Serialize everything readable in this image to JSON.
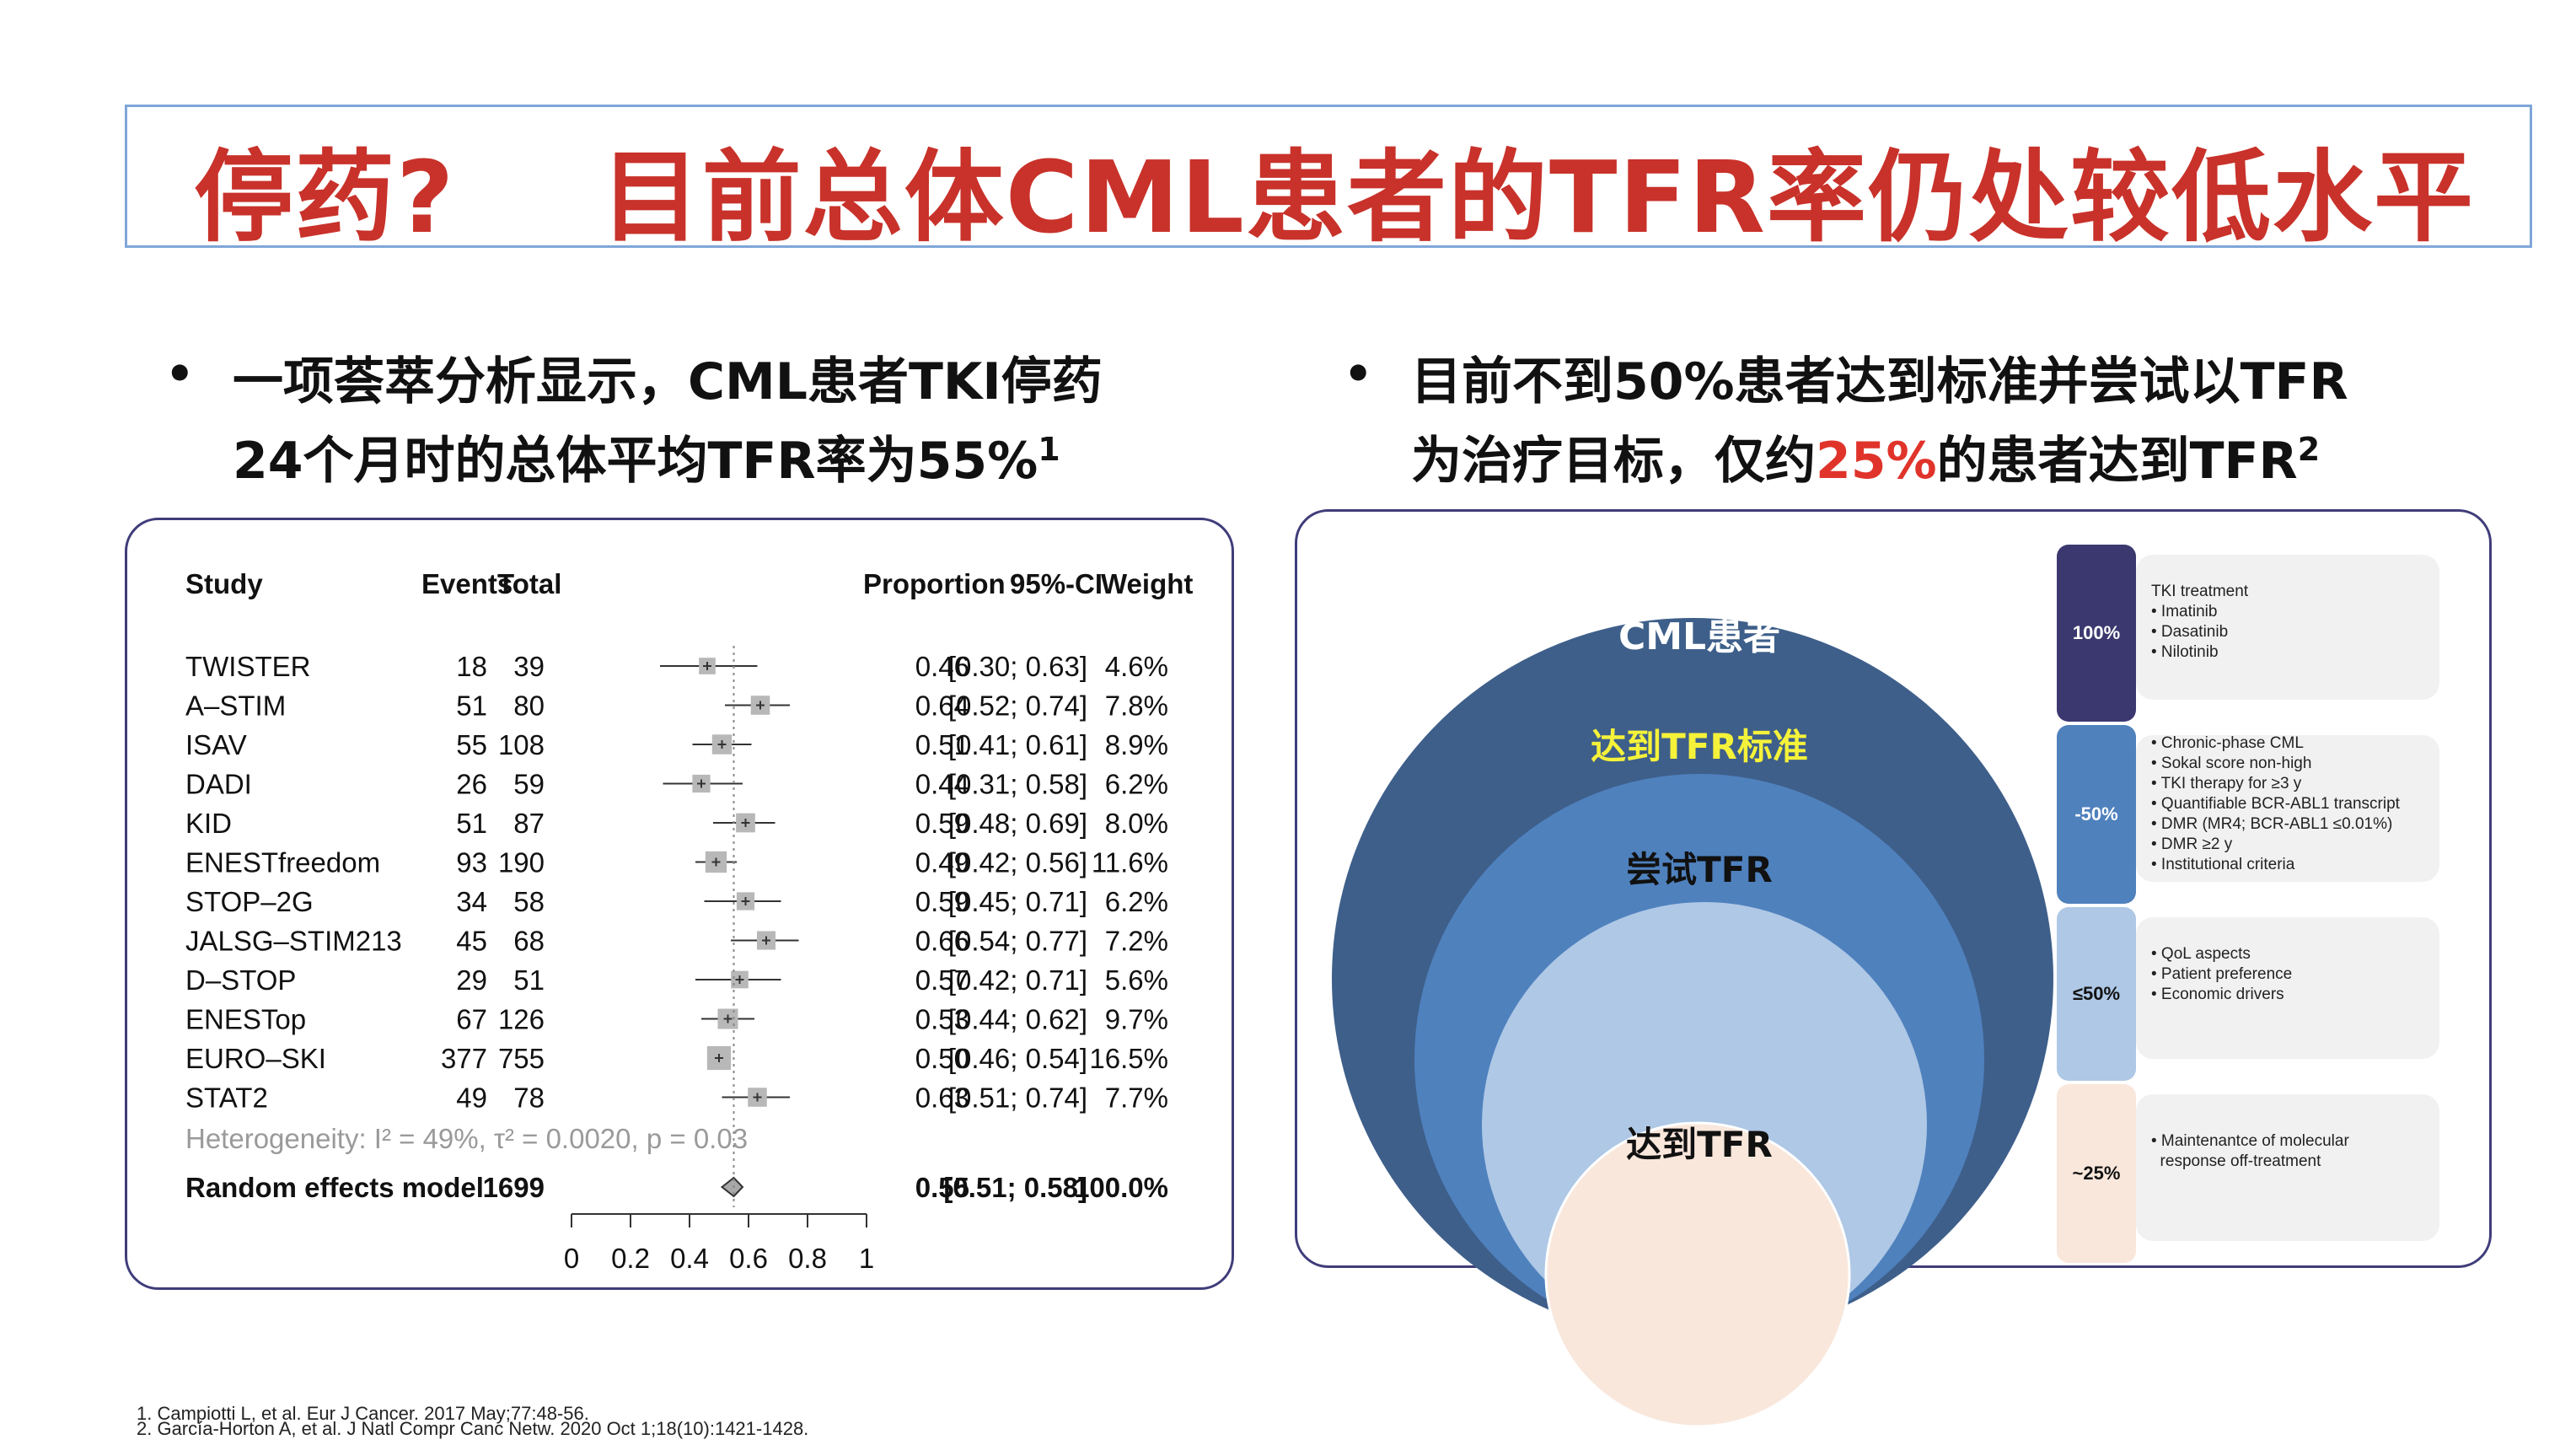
{
  "title": "停药?    目前总体CML患者的TFR率仍处较低水平",
  "left_bullet": {
    "line1": "一项荟萃分析显示，CML患者TKI停药",
    "line2": "24个月时的总体平均TFR率为55%",
    "sup": "1"
  },
  "right_bullet": {
    "line1": "目前不到50%患者达到标准并尝试以TFR",
    "line2_a": "为治疗目标，仅约",
    "line2_highlight": "25%",
    "line2_b": "的患者达到TFR",
    "sup": "2"
  },
  "forest_plot": {
    "headers": {
      "study": "Study",
      "events": "Events",
      "total": "Total",
      "proportion": "Proportion",
      "ci": "95%-CI",
      "weight": "Weight"
    },
    "rows": [
      {
        "study": "TWISTER",
        "events": "18",
        "total": "39",
        "proportion": "0.46",
        "ci": "[0.30; 0.63]",
        "weight": "4.6%",
        "p": 0.46,
        "lo": 0.3,
        "hi": 0.63,
        "w": 4.6
      },
      {
        "study": "A–STIM",
        "events": "51",
        "total": "80",
        "proportion": "0.64",
        "ci": "[0.52; 0.74]",
        "weight": "7.8%",
        "p": 0.64,
        "lo": 0.52,
        "hi": 0.74,
        "w": 7.8
      },
      {
        "study": "ISAV",
        "events": "55",
        "total": "108",
        "proportion": "0.51",
        "ci": "[0.41; 0.61]",
        "weight": "8.9%",
        "p": 0.51,
        "lo": 0.41,
        "hi": 0.61,
        "w": 8.9
      },
      {
        "study": "DADI",
        "events": "26",
        "total": "59",
        "proportion": "0.44",
        "ci": "[0.31; 0.58]",
        "weight": "6.2%",
        "p": 0.44,
        "lo": 0.31,
        "hi": 0.58,
        "w": 6.2
      },
      {
        "study": "KID",
        "events": "51",
        "total": "87",
        "proportion": "0.59",
        "ci": "[0.48; 0.69]",
        "weight": "8.0%",
        "p": 0.59,
        "lo": 0.48,
        "hi": 0.69,
        "w": 8.0
      },
      {
        "study": "ENESTfreedom",
        "events": "93",
        "total": "190",
        "proportion": "0.49",
        "ci": "[0.42; 0.56]",
        "weight": "11.6%",
        "p": 0.49,
        "lo": 0.42,
        "hi": 0.56,
        "w": 11.6
      },
      {
        "study": "STOP–2G",
        "events": "34",
        "total": "58",
        "proportion": "0.59",
        "ci": "[0.45; 0.71]",
        "weight": "6.2%",
        "p": 0.59,
        "lo": 0.45,
        "hi": 0.71,
        "w": 6.2
      },
      {
        "study": "JALSG–STIM213",
        "events": "45",
        "total": "68",
        "proportion": "0.66",
        "ci": "[0.54; 0.77]",
        "weight": "7.2%",
        "p": 0.66,
        "lo": 0.54,
        "hi": 0.77,
        "w": 7.2
      },
      {
        "study": "D–STOP",
        "events": "29",
        "total": "51",
        "proportion": "0.57",
        "ci": "[0.42; 0.71]",
        "weight": "5.6%",
        "p": 0.57,
        "lo": 0.42,
        "hi": 0.71,
        "w": 5.6
      },
      {
        "study": "ENESTop",
        "events": "67",
        "total": "126",
        "proportion": "0.53",
        "ci": "[0.44; 0.62]",
        "weight": "9.7%",
        "p": 0.53,
        "lo": 0.44,
        "hi": 0.62,
        "w": 9.7
      },
      {
        "study": "EURO–SKI",
        "events": "377",
        "total": "755",
        "proportion": "0.50",
        "ci": "[0.46; 0.54]",
        "weight": "16.5%",
        "p": 0.5,
        "lo": 0.46,
        "hi": 0.54,
        "w": 16.5
      },
      {
        "study": "STAT2",
        "events": "49",
        "total": "78",
        "proportion": "0.63",
        "ci": "[0.51; 0.74]",
        "weight": "7.7%",
        "p": 0.63,
        "lo": 0.51,
        "hi": 0.74,
        "w": 7.7
      }
    ],
    "heterogeneity": "Heterogeneity: I² = 49%, τ² = 0.0020, p = 0.03",
    "summary": {
      "label": "Random effects model",
      "total": "1699",
      "proportion": "0.55",
      "ci": "[0.51; 0.58]",
      "weight": "100.0%",
      "p": 0.55,
      "lo": 0.51,
      "hi": 0.58
    },
    "axis_ticks": [
      "0",
      "0.2",
      "0.4",
      "0.6",
      "0.8",
      "1"
    ]
  },
  "venn": {
    "outer": "CML患者",
    "second": "达到TFR标准",
    "third": "尝试TFR",
    "inner": "达到TFR",
    "colors": {
      "outer": "#3e5f8a",
      "second": "#4f81bd",
      "third": "#aec8e6",
      "inner": "#f9e7dc",
      "second_label": "#f5f23a"
    }
  },
  "cards": [
    {
      "pct": "100%",
      "color": "#3b3870",
      "lines": [
        "TKI treatment",
        "• Imatinib",
        "• Dasatinib",
        "• Nilotinib"
      ]
    },
    {
      "pct": "-50%",
      "color": "#4f81bd",
      "lines": [
        "• Chronic-phase CML",
        "• Sokal score non-high",
        "• TKI therapy for ≥3 y",
        "• Quantifiable BCR-ABL1 transcript",
        "• DMR (MR4; BCR-ABL1 ≤0.01%)",
        "• DMR ≥2 y",
        "• Institutional criteria"
      ]
    },
    {
      "pct": "≤50%",
      "color": "#aec8e6",
      "lines": [
        "• QoL aspects",
        "• Patient preference",
        "• Economic drivers"
      ]
    },
    {
      "pct": "~25%",
      "color": "#f9e7dc",
      "lines": [
        "• Maintenantce of molecular",
        "  response off-treatment"
      ]
    }
  ],
  "footnotes": [
    "1. Campiotti L, et al. Eur J Cancer. 2017 May;77:48-56.",
    "2. García-Horton A, et al. J Natl Compr Canc Netw. 2020 Oct 1;18(10):1421-1428."
  ]
}
